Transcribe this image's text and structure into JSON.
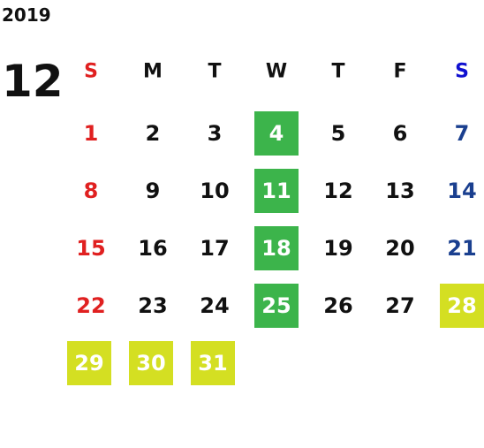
{
  "calendar": {
    "year": "2019",
    "month": "12",
    "weekdays": [
      "S",
      "M",
      "T",
      "W",
      "T",
      "F",
      "S"
    ],
    "weekday_colors": [
      "#e02020",
      "#111111",
      "#111111",
      "#111111",
      "#111111",
      "#111111",
      "#1010d0"
    ],
    "date_colors": [
      "#e02020",
      "#111111",
      "#111111",
      "#111111",
      "#111111",
      "#111111",
      "#1a3f8f"
    ],
    "weeks": [
      [
        1,
        2,
        3,
        {
          "day": 4,
          "highlight": "#3cb44b"
        },
        5,
        6,
        7
      ],
      [
        8,
        9,
        10,
        {
          "day": 11,
          "highlight": "#3cb44b"
        },
        12,
        13,
        14
      ],
      [
        15,
        16,
        17,
        {
          "day": 18,
          "highlight": "#3cb44b"
        },
        19,
        20,
        21
      ],
      [
        22,
        23,
        24,
        {
          "day": 25,
          "highlight": "#3cb44b"
        },
        26,
        27,
        {
          "day": 28,
          "highlight": "#d4df22"
        }
      ],
      [
        {
          "day": 29,
          "highlight": "#d4df22"
        },
        {
          "day": 30,
          "highlight": "#d4df22"
        },
        {
          "day": 31,
          "highlight": "#d4df22"
        },
        null,
        null,
        null,
        null
      ]
    ]
  }
}
